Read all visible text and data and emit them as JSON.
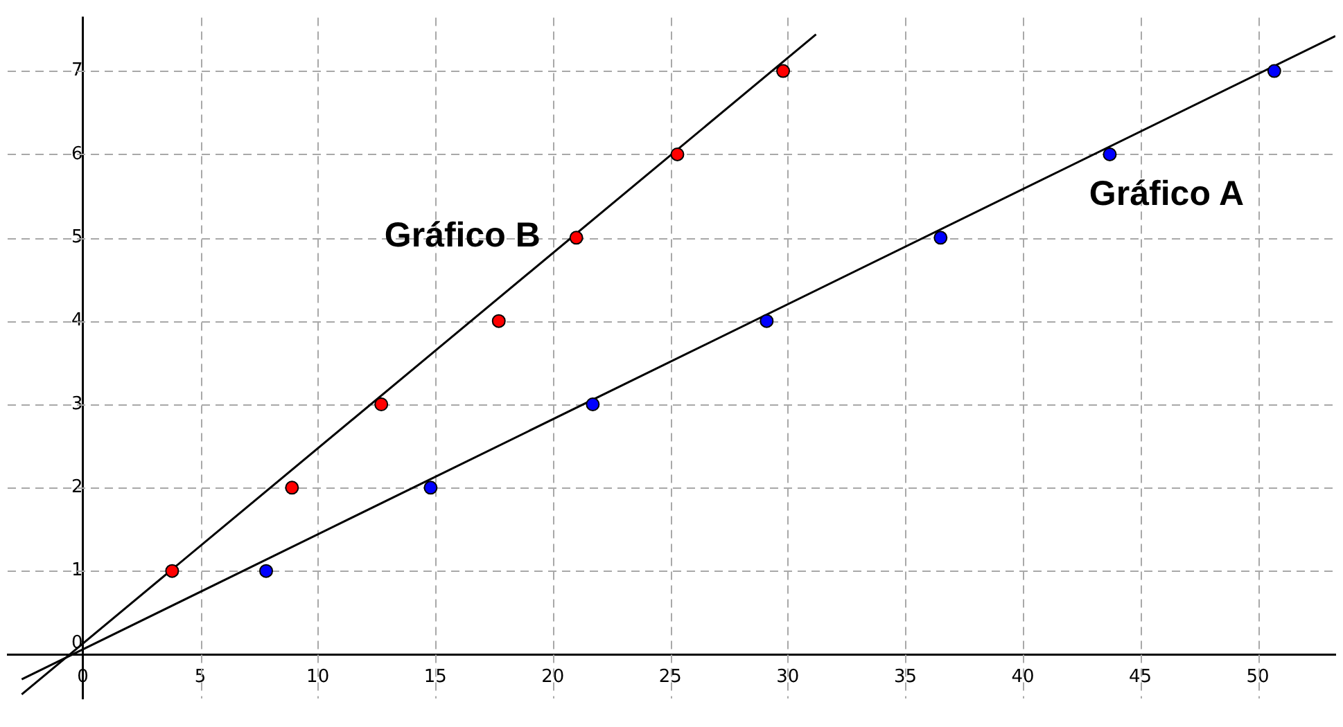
{
  "chart_data": {
    "type": "scatter",
    "xlim": [
      -3.2,
      53.3
    ],
    "ylim": [
      -0.53,
      7.64
    ],
    "xticks": [
      0,
      5,
      10,
      15,
      20,
      25,
      30,
      35,
      40,
      45,
      50
    ],
    "yticks": [
      0,
      1,
      2,
      3,
      4,
      5,
      6,
      7
    ],
    "grid": true,
    "legend": false,
    "marker": "circle",
    "series": [
      {
        "type": "line",
        "name": "Gráfico B",
        "color": "#000000",
        "marker": "none",
        "x": [
          -2.6,
          31.2
        ],
        "values": [
          -0.48,
          7.44
        ]
      },
      {
        "type": "line",
        "name": "Gráfico A",
        "color": "#000000",
        "marker": "none",
        "x": [
          -2.6,
          53.3
        ],
        "values": [
          -0.3,
          7.42
        ]
      },
      {
        "type": "scatter",
        "color": "#ff0000",
        "x": [
          3.8,
          8.9,
          12.7,
          17.7,
          21.0,
          25.3,
          29.8
        ],
        "values": [
          1,
          2,
          3,
          4,
          5,
          6,
          7
        ]
      },
      {
        "type": "scatter",
        "color": "#0000ff",
        "x": [
          7.8,
          14.8,
          21.7,
          29.1,
          36.5,
          43.7,
          50.7
        ],
        "values": [
          1,
          2,
          3,
          4,
          5,
          6,
          7
        ]
      }
    ]
  }
}
